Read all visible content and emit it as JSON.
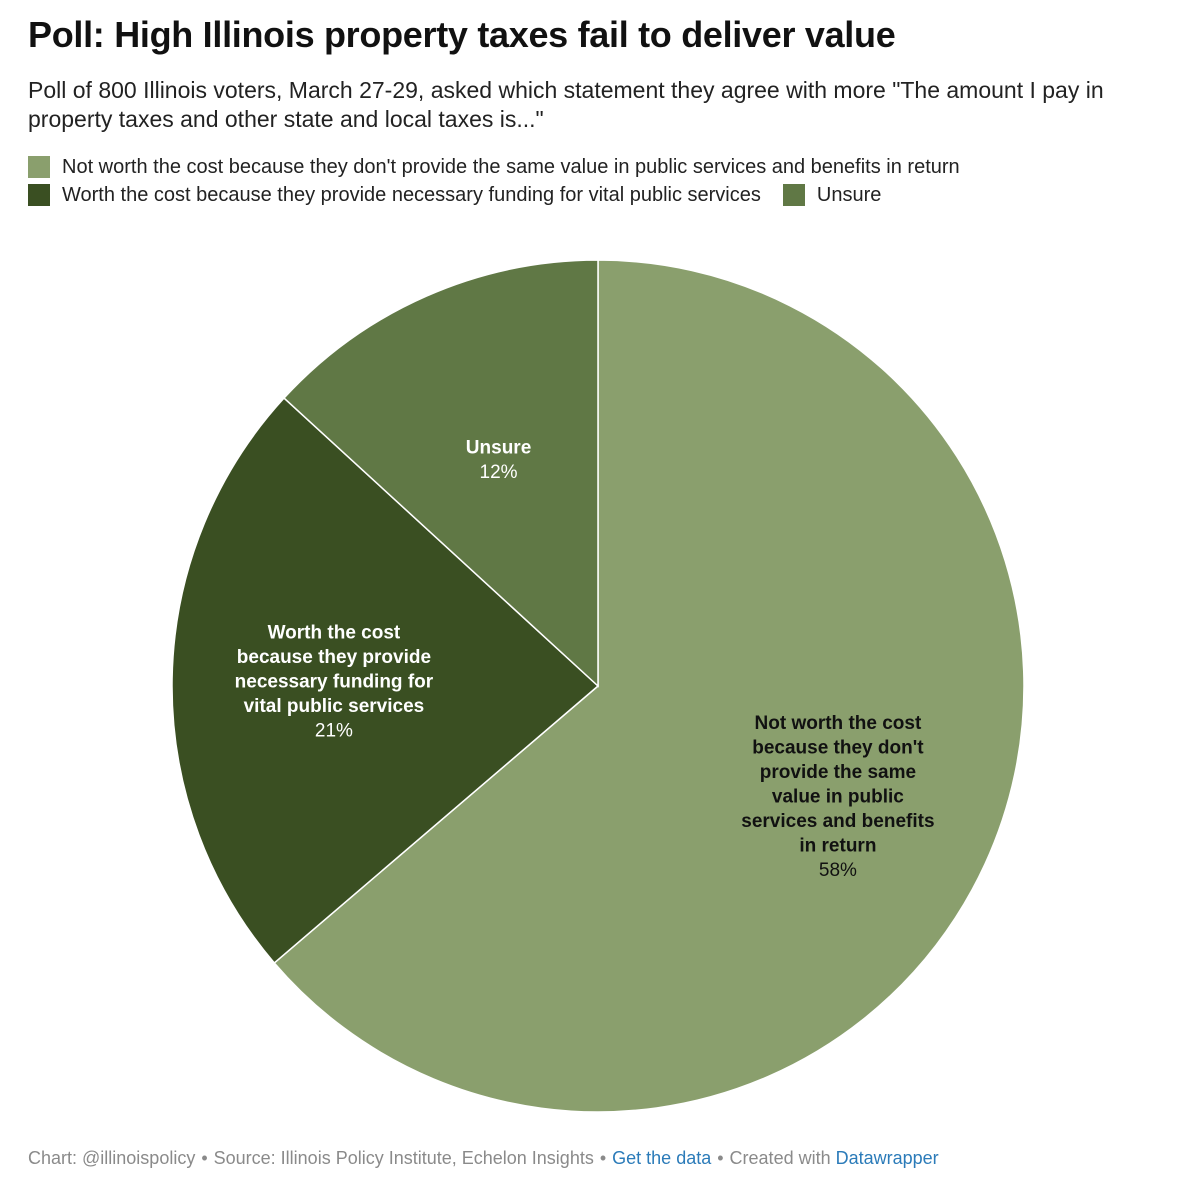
{
  "header": {
    "title": "Poll: High Illinois property taxes fail to deliver value",
    "subtitle": "Poll of 800 Illinois voters, March 27-29, asked which statement they agree with more \"The amount I pay in property taxes and other state and local taxes is...\""
  },
  "legend": {
    "items": [
      {
        "label": "Not worth the cost because they don't provide the same value in public services and benefits in return",
        "color": "#8a9f6d"
      },
      {
        "label": "Worth the cost because they provide necessary funding for vital public services",
        "color": "#3a4f22"
      },
      {
        "label": "Unsure",
        "color": "#607845"
      }
    ]
  },
  "chart_data": {
    "type": "pie",
    "title": "Poll: High Illinois property taxes fail to deliver value",
    "slices": [
      {
        "label_lines": [
          "Not worth the cost",
          "because they don't",
          "provide the same",
          "value in public",
          "services and benefits",
          "in return"
        ],
        "value": 58,
        "value_label": "58%",
        "color": "#8a9f6d",
        "label_color": "#111111"
      },
      {
        "label_lines": [
          "Worth the cost",
          "because they provide",
          "necessary funding for",
          "vital public services"
        ],
        "value": 21,
        "value_label": "21%",
        "color": "#3a4f22",
        "label_color": "#ffffff"
      },
      {
        "label_lines": [
          "Unsure"
        ],
        "value": 12,
        "value_label": "12%",
        "color": "#607845",
        "label_color": "#ffffff"
      }
    ]
  },
  "footer": {
    "credit": "Chart: @illinoispolicy",
    "source": "Source: Illinois Policy Institute, Echelon Insights",
    "get_data": "Get the data",
    "created_with": "Created with",
    "tool": "Datawrapper",
    "separator": "•"
  }
}
